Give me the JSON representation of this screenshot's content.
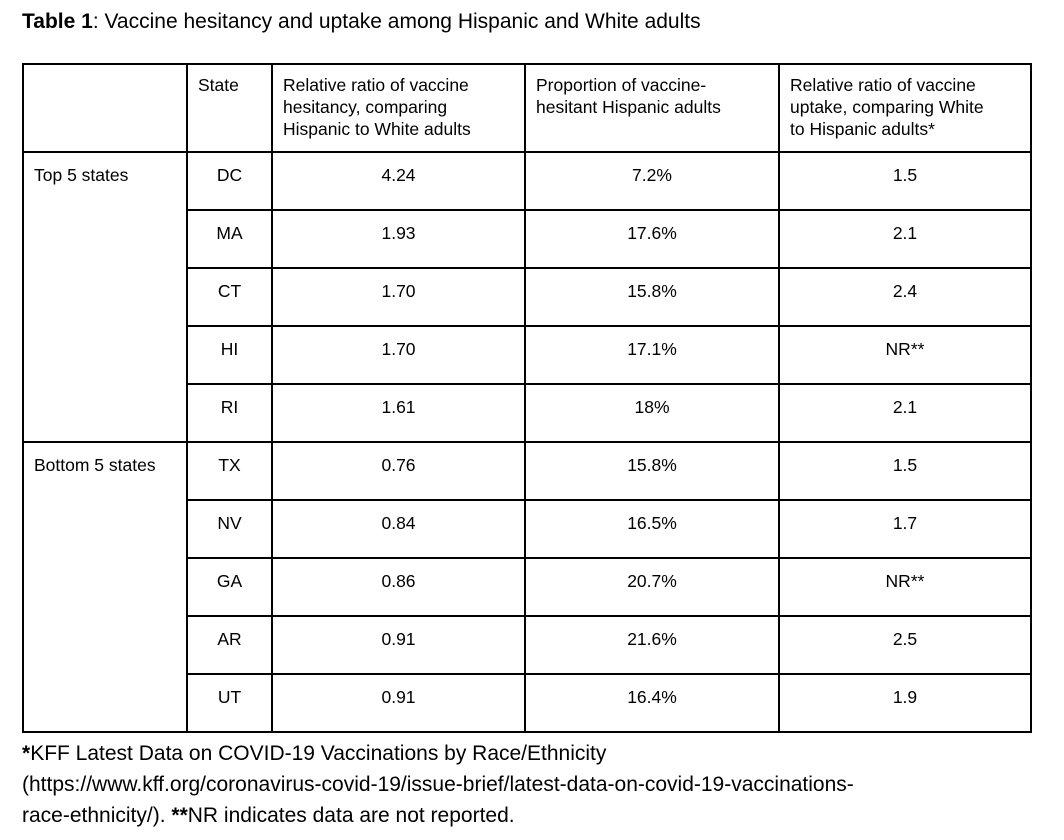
{
  "title": {
    "label": "Table 1",
    "rest": ": Vaccine hesitancy and uptake among Hispanic and White adults"
  },
  "table": {
    "headers": {
      "category": "",
      "state": "State",
      "hesitancy_ratio": "Relative ratio of vaccine\nhesitancy, comparing\nHispanic to White adults",
      "hesitant_proportion": "Proportion of vaccine-\nhesitant Hispanic adults",
      "uptake_ratio": "Relative ratio of vaccine\nuptake, comparing White\nto Hispanic adults*"
    },
    "groups": [
      {
        "label": "Top 5 states",
        "rows": [
          {
            "state": "DC",
            "hesitancy_ratio": "4.24",
            "hesitant_proportion": "7.2%",
            "uptake_ratio": "1.5"
          },
          {
            "state": "MA",
            "hesitancy_ratio": "1.93",
            "hesitant_proportion": "17.6%",
            "uptake_ratio": "2.1"
          },
          {
            "state": "CT",
            "hesitancy_ratio": "1.70",
            "hesitant_proportion": "15.8%",
            "uptake_ratio": "2.4"
          },
          {
            "state": "HI",
            "hesitancy_ratio": "1.70",
            "hesitant_proportion": "17.1%",
            "uptake_ratio": "NR**"
          },
          {
            "state": "RI",
            "hesitancy_ratio": "1.61",
            "hesitant_proportion": "18%",
            "uptake_ratio": "2.1"
          }
        ]
      },
      {
        "label": "Bottom 5 states",
        "rows": [
          {
            "state": "TX",
            "hesitancy_ratio": "0.76",
            "hesitant_proportion": "15.8%",
            "uptake_ratio": "1.5"
          },
          {
            "state": "NV",
            "hesitancy_ratio": "0.84",
            "hesitant_proportion": "16.5%",
            "uptake_ratio": "1.7"
          },
          {
            "state": "GA",
            "hesitancy_ratio": "0.86",
            "hesitant_proportion": "20.7%",
            "uptake_ratio": "NR**"
          },
          {
            "state": "AR",
            "hesitancy_ratio": "0.91",
            "hesitant_proportion": "21.6%",
            "uptake_ratio": "2.5"
          },
          {
            "state": "UT",
            "hesitancy_ratio": "0.91",
            "hesitant_proportion": "16.4%",
            "uptake_ratio": "1.9"
          }
        ]
      }
    ]
  },
  "footnote_lines": [
    [
      {
        "t": "*",
        "b": true
      },
      {
        "t": "KFF Latest Data on COVID-19 Vaccinations by Race/Ethnicity",
        "b": false
      }
    ],
    [
      {
        "t": "(https://www.kff.org/coronavirus-covid-19/issue-brief/latest-data-on-covid-19-vaccinations-",
        "b": false
      }
    ],
    [
      {
        "t": "race-ethnicity/). ",
        "b": false
      },
      {
        "t": "**",
        "b": true
      },
      {
        "t": "NR indicates data are not reported.",
        "b": false
      }
    ]
  ]
}
